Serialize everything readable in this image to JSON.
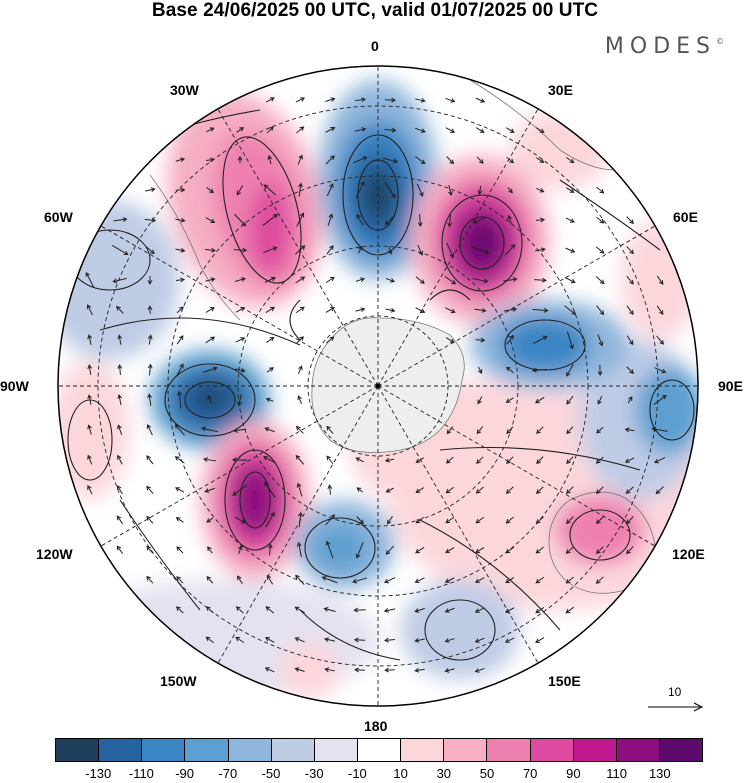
{
  "title": "Base 24/06/2025 00 UTC, valid 01/07/2025 00 UTC",
  "brand": "MODES",
  "brand_mark": "©",
  "lon_labels": {
    "top": "0",
    "e30": "30E",
    "e60": "60E",
    "e90": "90E",
    "e120": "120E",
    "e150": "150E",
    "bottom": "180",
    "w150": "150W",
    "w120": "120W",
    "w90": "90W",
    "w60": "60W",
    "w30": "30W"
  },
  "reference_vector": "10",
  "colorbar": {
    "colors": [
      "#1f3f5c",
      "#2563a0",
      "#3a85c4",
      "#5d9fd0",
      "#8fb6dc",
      "#bfcce6",
      "#e3e2f0",
      "#ffffff",
      "#fbd7dc",
      "#f6afc3",
      "#ee80b0",
      "#dd4a9f",
      "#c0188e",
      "#8c0e7f",
      "#5c0a6c"
    ],
    "ticks": [
      "-130",
      "-110",
      "-90",
      "-70",
      "-50",
      "-30",
      "-10",
      "10",
      "30",
      "50",
      "70",
      "90",
      "110",
      "130"
    ]
  }
}
